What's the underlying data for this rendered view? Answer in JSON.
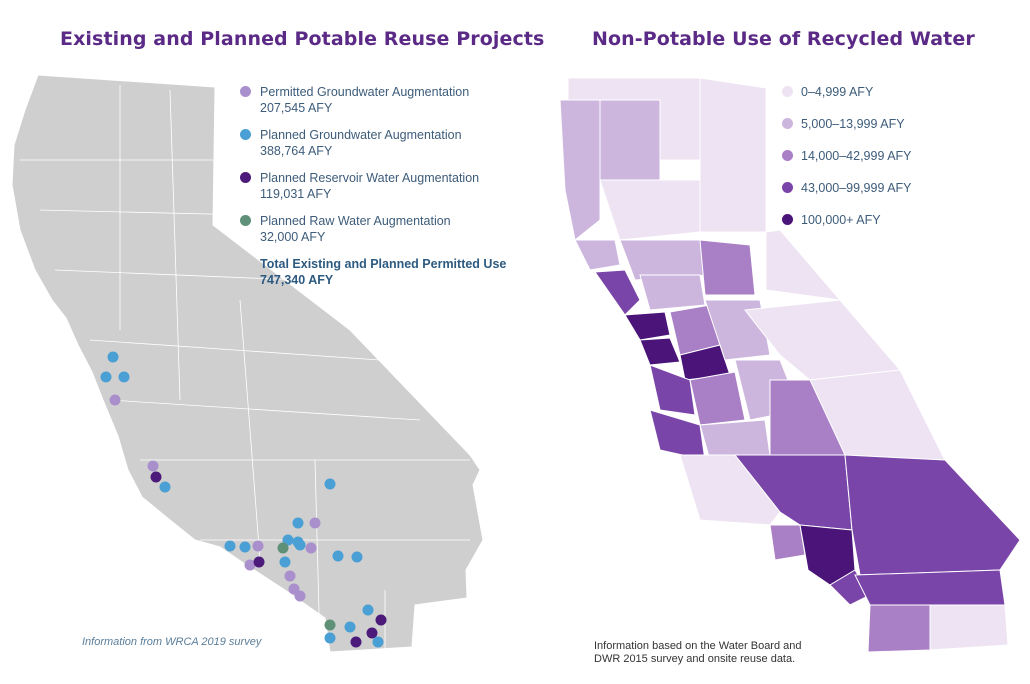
{
  "left_panel": {
    "title": "Existing and Planned Potable Reuse Projects",
    "legend": [
      {
        "label": "Permitted Groundwater Augmentation",
        "value": "207,545 AFY",
        "color": "#a98fcc"
      },
      {
        "label": "Planned Groundwater Augmentation",
        "value": "388,764 AFY",
        "color": "#4a9fd4"
      },
      {
        "label": "Planned Reservoir Water Augmentation",
        "value": "119,031 AFY",
        "color": "#4b1a7a"
      },
      {
        "label": "Planned Raw Water Augmentation",
        "value": "32,000 AFY",
        "color": "#5e9178"
      }
    ],
    "total_label": "Total Existing and Planned Permitted Use",
    "total_value": "747,340 AFY",
    "caption": "Information from WRCA 2019 survey",
    "map_color": "#cfcfcf"
  },
  "right_panel": {
    "title": "Non-Potable Use of Recycled Water",
    "legend": [
      {
        "label": "0–4,999 AFY",
        "color": "#ede3f2"
      },
      {
        "label": "5,000–13,999 AFY",
        "color": "#cdb6dd"
      },
      {
        "label": "14,000–42,999 AFY",
        "color": "#a97fc6"
      },
      {
        "label": "43,000–99,999 AFY",
        "color": "#7a45a8"
      },
      {
        "label": "100,000+ AFY",
        "color": "#4a1478"
      }
    ],
    "caption": "Information based on the Water Board and DWR 2015 survey and onsite reuse data."
  }
}
